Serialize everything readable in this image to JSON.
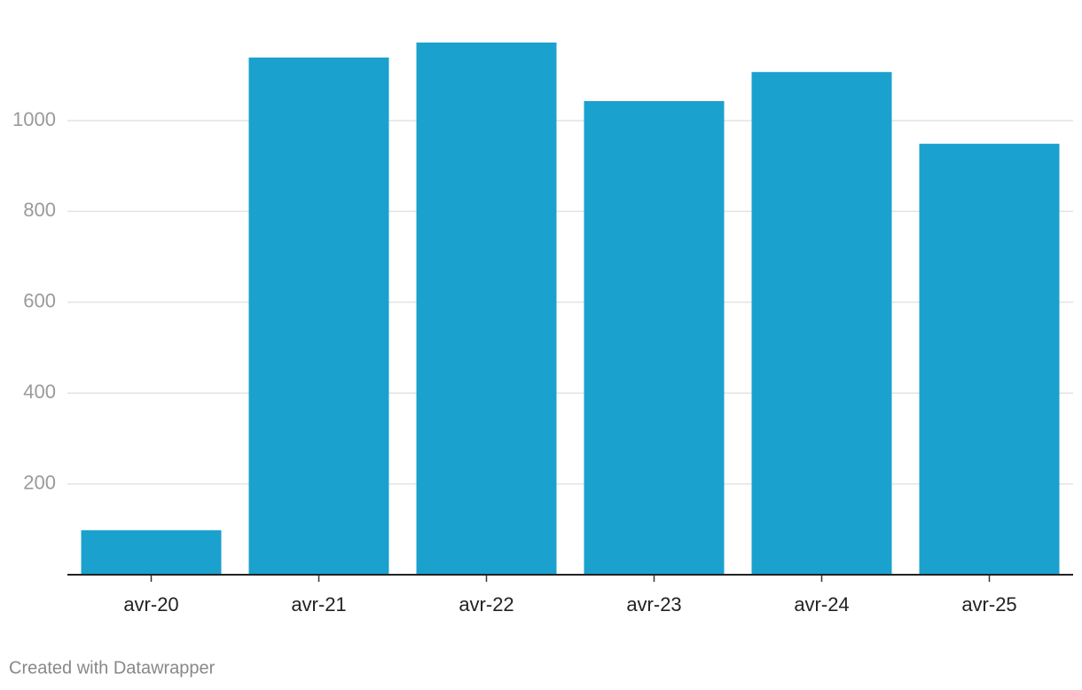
{
  "chart_data": {
    "type": "bar",
    "categories": [
      "avr-20",
      "avr-21",
      "avr-22",
      "avr-23",
      "avr-24",
      "avr-25"
    ],
    "values": [
      98,
      1139,
      1172,
      1043,
      1107,
      949
    ],
    "color": "#1ba1ce",
    "ylim": [
      0,
      1200
    ],
    "yticks": [
      200,
      400,
      600,
      800,
      1000
    ],
    "grid": true,
    "credit": "Created with Datawrapper"
  }
}
